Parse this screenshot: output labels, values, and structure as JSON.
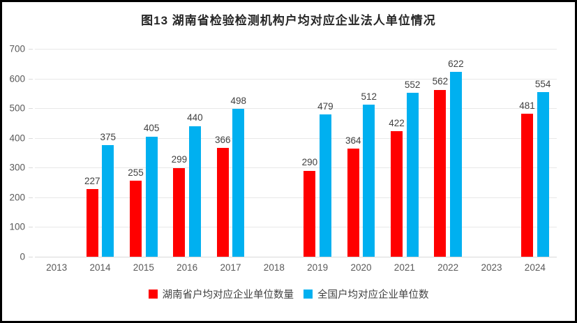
{
  "chart_data": {
    "type": "bar",
    "title": "图13 湖南省检验检测机构户均对应企业法人单位情况",
    "categories": [
      "2013",
      "2014",
      "2015",
      "2016",
      "2017",
      "2018",
      "2019",
      "2020",
      "2021",
      "2022",
      "2023",
      "2024"
    ],
    "series": [
      {
        "name": "湖南省户均对应企业单位数量",
        "color": "#ff0000",
        "values": [
          null,
          227,
          255,
          299,
          366,
          null,
          290,
          364,
          422,
          562,
          null,
          481
        ]
      },
      {
        "name": "全国户均对应企业单位数",
        "color": "#00b0f0",
        "values": [
          null,
          375,
          405,
          440,
          498,
          null,
          479,
          512,
          552,
          622,
          null,
          554
        ]
      }
    ],
    "ylim": [
      0,
      700
    ],
    "yticks": [
      0,
      100,
      200,
      300,
      400,
      500,
      600,
      700
    ],
    "xlabel": "",
    "ylabel": "",
    "grid": true,
    "legend_position": "bottom",
    "data_labels": "outside-end"
  },
  "style": {
    "gridline_color": "#e8e8e8",
    "axis_line_color": "#d9d9d9",
    "axis_text_color": "#595959",
    "data_label_color": "#404040",
    "title_color": "#262626",
    "frame_border_color": "#000000"
  }
}
